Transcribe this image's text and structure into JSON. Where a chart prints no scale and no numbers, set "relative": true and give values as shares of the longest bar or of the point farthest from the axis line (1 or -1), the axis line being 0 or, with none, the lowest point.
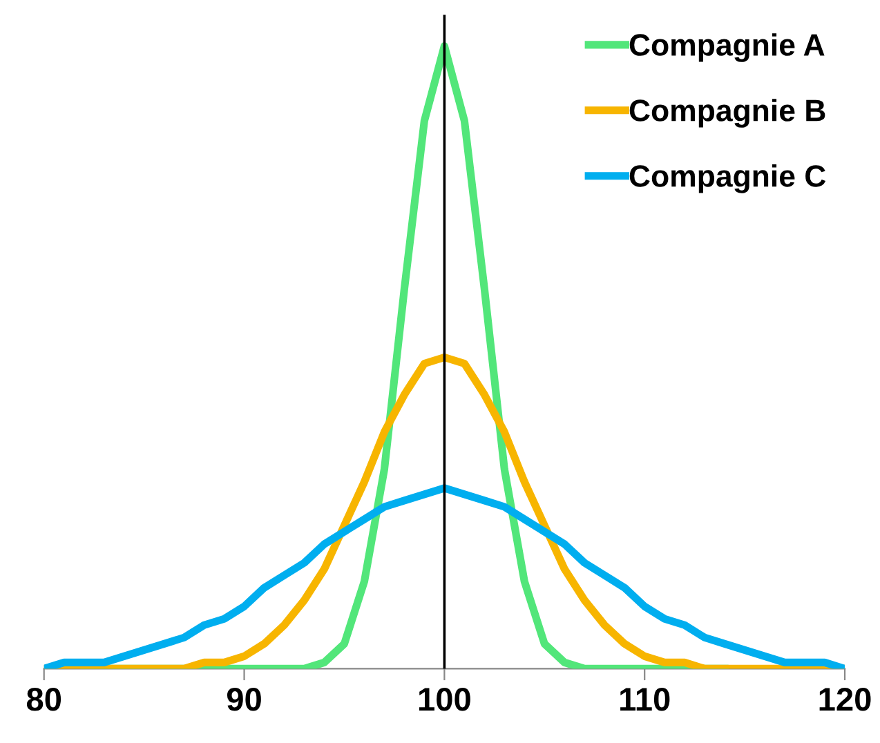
{
  "chart_data": {
    "type": "line",
    "relative": true,
    "x": [
      80,
      81,
      82,
      83,
      84,
      85,
      86,
      87,
      88,
      89,
      90,
      91,
      92,
      93,
      94,
      95,
      96,
      97,
      98,
      99,
      100,
      101,
      102,
      103,
      104,
      105,
      106,
      107,
      108,
      109,
      110,
      111,
      112,
      113,
      114,
      115,
      116,
      117,
      118,
      119,
      120
    ],
    "xlim": [
      80,
      120
    ],
    "xticks": [
      80,
      90,
      100,
      110,
      120
    ],
    "series": [
      {
        "name": "Compagnie A",
        "color": "#52e67a",
        "values": [
          null,
          null,
          0,
          0,
          0,
          0,
          0,
          0,
          0,
          0,
          0,
          0,
          0,
          0,
          0.01,
          0.04,
          0.14,
          0.32,
          0.61,
          0.88,
          1,
          0.88,
          0.61,
          0.32,
          0.14,
          0.04,
          0.01,
          0,
          0,
          0,
          0,
          0,
          0,
          0,
          0,
          null,
          null,
          null,
          null,
          null,
          null
        ]
      },
      {
        "name": "Compagnie B",
        "color": "#f7b500",
        "values": [
          0,
          0,
          0,
          0,
          0,
          0,
          0,
          0,
          0.01,
          0.01,
          0.02,
          0.04,
          0.07,
          0.11,
          0.16,
          0.23,
          0.3,
          0.38,
          0.44,
          0.49,
          0.5,
          0.49,
          0.44,
          0.38,
          0.3,
          0.23,
          0.16,
          0.11,
          0.07,
          0.04,
          0.02,
          0.01,
          0.01,
          0,
          0,
          0,
          0,
          0,
          0,
          0,
          0
        ]
      },
      {
        "name": "Compagnie C",
        "color": "#00aeef",
        "values": [
          0,
          0.01,
          0.01,
          0.01,
          0.02,
          0.03,
          0.04,
          0.05,
          0.07,
          0.08,
          0.1,
          0.13,
          0.15,
          0.17,
          0.2,
          0.22,
          0.24,
          0.26,
          0.27,
          0.28,
          0.29,
          0.28,
          0.27,
          0.26,
          0.24,
          0.22,
          0.2,
          0.17,
          0.15,
          0.13,
          0.1,
          0.08,
          0.07,
          0.05,
          0.04,
          0.03,
          0.02,
          0.01,
          0.01,
          0.01,
          0
        ]
      }
    ],
    "ref_lines": [
      {
        "axis": "x",
        "value": 100,
        "color": "#000000"
      }
    ],
    "legend": "top right",
    "grid": false,
    "marker": "none",
    "line_style": "solid"
  }
}
